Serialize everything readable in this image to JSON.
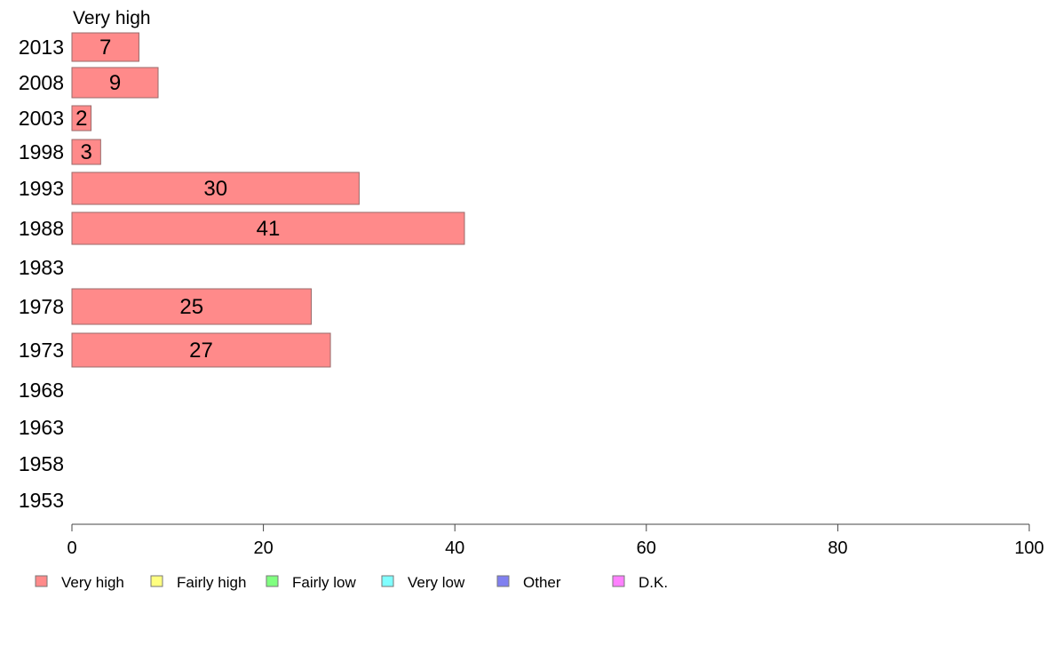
{
  "chart_data": {
    "type": "bar",
    "orientation": "horizontal",
    "title": "Very high",
    "categories": [
      "2013",
      "2008",
      "2003",
      "1998",
      "1993",
      "1988",
      "1983",
      "1978",
      "1973",
      "1968",
      "1963",
      "1958",
      "1953"
    ],
    "series": [
      {
        "name": "Very high",
        "values": [
          7,
          9,
          2,
          3,
          30,
          41,
          null,
          25,
          27,
          null,
          null,
          null,
          null
        ],
        "color": "#ff8a8a"
      }
    ],
    "xlim": [
      0,
      100
    ],
    "xticks": [
      0,
      20,
      40,
      60,
      80,
      100
    ],
    "grid": false,
    "legend": {
      "placement": "bottom",
      "items": [
        {
          "label": "Very high",
          "color": "#ff8a8a"
        },
        {
          "label": "Fairly high",
          "color": "#ffff80"
        },
        {
          "label": "Fairly low",
          "color": "#80ff80"
        },
        {
          "label": "Very low",
          "color": "#80ffff"
        },
        {
          "label": "Other",
          "color": "#8080f0"
        },
        {
          "label": "D.K.",
          "color": "#ff80ff"
        }
      ]
    }
  }
}
